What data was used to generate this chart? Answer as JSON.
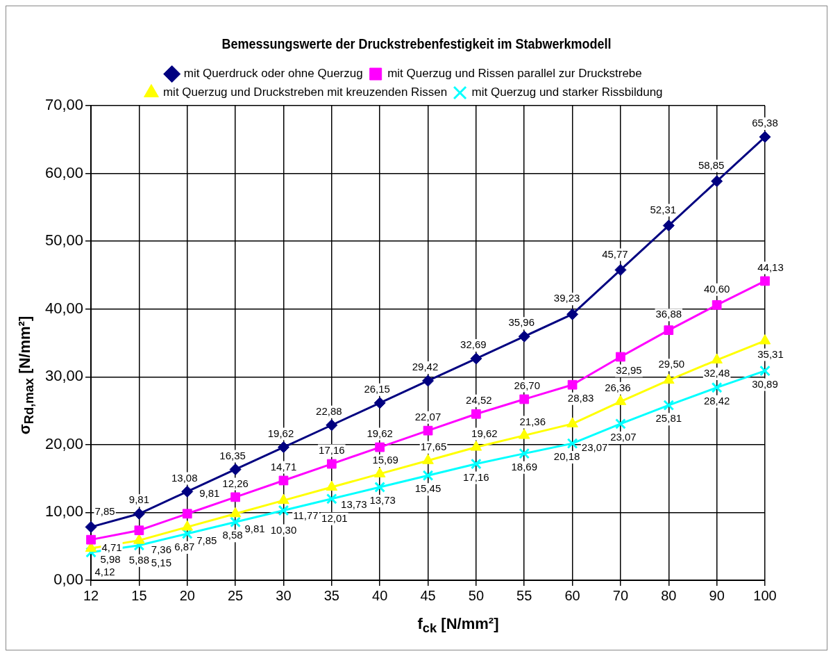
{
  "chart_data": {
    "type": "line",
    "title": "Bemessungswerte der Druckstrebenfestigkeit im Stabwerkmodell",
    "xlabel": "f$_{ck}$ [N/mm²]",
    "ylabel": "σ$_{Rd,max}$ [N/mm²]",
    "categories": [
      "12",
      "15",
      "20",
      "25",
      "30",
      "35",
      "40",
      "45",
      "50",
      "55",
      "60",
      "70",
      "80",
      "90",
      "100"
    ],
    "series": [
      {
        "name": "mit Querdruck oder ohne Querzug",
        "color": "#000080",
        "marker": "diamond",
        "values": [
          7.85,
          9.81,
          13.08,
          16.35,
          19.62,
          22.88,
          26.15,
          29.42,
          32.69,
          35.96,
          39.23,
          45.77,
          52.31,
          58.85,
          65.38
        ],
        "value_labels": [
          "7,85",
          "9,81",
          "13,08",
          "16,35",
          "19,62",
          "22,88",
          "26,15",
          "29,42",
          "32,69",
          "35,96",
          "39,23",
          "45,77",
          "52,31",
          "58,85",
          "65,38"
        ]
      },
      {
        "name": "mit Querzug und Rissen parallel zur Druckstrebe",
        "color": "#ff00ff",
        "marker": "square",
        "values": [
          5.98,
          7.36,
          9.81,
          12.26,
          14.71,
          17.16,
          19.62,
          22.07,
          24.52,
          26.7,
          28.83,
          32.95,
          36.88,
          40.6,
          44.13
        ],
        "value_labels": [
          "5,98",
          "7,36",
          "9,81",
          "12,26",
          "14,71",
          "17,16",
          "19,62",
          "22,07",
          "24,52",
          "26,70",
          "28,83",
          "32,95",
          "36,88",
          "40,60",
          "44,13"
        ]
      },
      {
        "name": "mit Querzug und Druckstreben mit kreuzenden Rissen",
        "color": "#ffff00",
        "marker": "triangle",
        "values": [
          4.71,
          5.88,
          7.85,
          9.81,
          11.77,
          13.73,
          15.69,
          17.65,
          19.62,
          21.36,
          23.07,
          26.36,
          29.5,
          32.48,
          35.31
        ],
        "value_labels": [
          "4,71",
          "5,88",
          "7,85",
          "9,81",
          "11,77",
          "13,73",
          "15,69",
          "17,65",
          "19,62",
          "21,36",
          "23,07",
          "26,36",
          "29,50",
          "32,48",
          "35,31"
        ]
      },
      {
        "name": "mit Querzug und starker Rissbildung",
        "color": "#00ffff",
        "marker": "cross",
        "values": [
          4.12,
          5.15,
          6.87,
          8.58,
          10.3,
          12.01,
          13.73,
          15.45,
          17.16,
          18.69,
          20.18,
          23.07,
          25.81,
          28.42,
          30.89
        ],
        "value_labels": [
          "4,12",
          "5,15",
          "6,87",
          "8,58",
          "10,30",
          "12,01",
          "13,73",
          "15,45",
          "17,16",
          "18,69",
          "20,18",
          "23,07",
          "25,81",
          "28,42",
          "30,89"
        ]
      }
    ],
    "ylim": [
      0,
      70
    ],
    "yticks": [
      {
        "value": 0,
        "label": "0,00"
      },
      {
        "value": 10,
        "label": "10,00"
      },
      {
        "value": 20,
        "label": "20,00"
      },
      {
        "value": 30,
        "label": "30,00"
      },
      {
        "value": 40,
        "label": "40,00"
      },
      {
        "value": 50,
        "label": "50,00"
      },
      {
        "value": 60,
        "label": "60,00"
      },
      {
        "value": 70,
        "label": "70,00"
      }
    ],
    "grid": true,
    "legend": "top",
    "line_style": "solid"
  }
}
